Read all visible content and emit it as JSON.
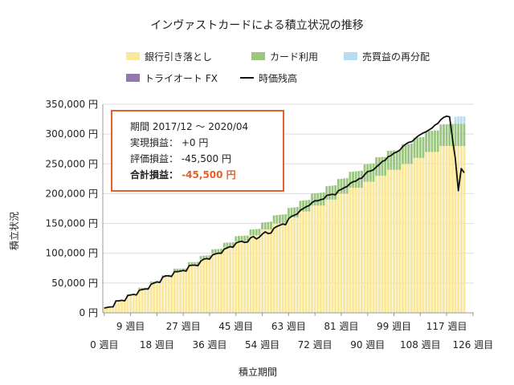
{
  "chart_data": {
    "type": "bar",
    "stacked": true,
    "title": "インヴァストカードによる積立状況の推移",
    "xlabel": "積立期間",
    "ylabel": "積立状況",
    "ylim": [
      0,
      350000
    ],
    "yticks": [
      0,
      50000,
      100000,
      150000,
      200000,
      250000,
      300000,
      350000
    ],
    "ytick_labels": [
      "0 円",
      "50,000 円",
      "100,000 円",
      "150,000 円",
      "200,000 円",
      "250,000 円",
      "300,000 円",
      "350,000 円"
    ],
    "xtick_labels": [
      {
        "week": 0,
        "label": "0 週目"
      },
      {
        "week": 9,
        "label": "9 週目"
      },
      {
        "week": 18,
        "label": "18 週目"
      },
      {
        "week": 27,
        "label": "27 週目"
      },
      {
        "week": 36,
        "label": "36 週目"
      },
      {
        "week": 45,
        "label": "45 週目"
      },
      {
        "week": 54,
        "label": "54 週目"
      },
      {
        "week": 63,
        "label": "63 週目"
      },
      {
        "week": 72,
        "label": "72 週目"
      },
      {
        "week": 81,
        "label": "81 週目"
      },
      {
        "week": 90,
        "label": "90 週目"
      },
      {
        "week": 99,
        "label": "99 週目"
      },
      {
        "week": 108,
        "label": "108 週目"
      },
      {
        "week": 117,
        "label": "117 週目"
      },
      {
        "week": 126,
        "label": "126 週目"
      }
    ],
    "legend_position": "top",
    "grid": true,
    "x": [
      0,
      1,
      2,
      3,
      4,
      5,
      6,
      7,
      8,
      9,
      10,
      11,
      12,
      13,
      14,
      15,
      16,
      17,
      18,
      19,
      20,
      21,
      22,
      23,
      24,
      25,
      26,
      27,
      28,
      29,
      30,
      31,
      32,
      33,
      34,
      35,
      36,
      37,
      38,
      39,
      40,
      41,
      42,
      43,
      44,
      45,
      46,
      47,
      48,
      49,
      50,
      51,
      52,
      53,
      54,
      55,
      56,
      57,
      58,
      59,
      60,
      61,
      62,
      63,
      64,
      65,
      66,
      67,
      68,
      69,
      70,
      71,
      72,
      73,
      74,
      75,
      76,
      77,
      78,
      79,
      80,
      81,
      82,
      83,
      84,
      85,
      86,
      87,
      88,
      89,
      90,
      91,
      92,
      93,
      94,
      95,
      96,
      97,
      98,
      99,
      100,
      101,
      102,
      103,
      104,
      105,
      106,
      107,
      108,
      109,
      110,
      111,
      112,
      113,
      114,
      115,
      116,
      117,
      118,
      119,
      120,
      121,
      122,
      123
    ],
    "series": [
      {
        "name": "銀行引き落とし",
        "color": "#f9e79a",
        "values": [
          10000,
          10000,
          10000,
          10000,
          20000,
          20000,
          20000,
          20000,
          30000,
          30000,
          30000,
          30000,
          40000,
          40000,
          40000,
          40000,
          50000,
          50000,
          50000,
          50000,
          60000,
          60000,
          60000,
          60000,
          70000,
          70000,
          70000,
          70000,
          70000,
          80000,
          80000,
          80000,
          80000,
          90000,
          90000,
          90000,
          90000,
          100000,
          100000,
          100000,
          100000,
          110000,
          110000,
          110000,
          110000,
          120000,
          120000,
          120000,
          120000,
          120000,
          130000,
          130000,
          130000,
          130000,
          140000,
          140000,
          140000,
          140000,
          150000,
          150000,
          150000,
          150000,
          150000,
          160000,
          160000,
          160000,
          160000,
          170000,
          170000,
          170000,
          170000,
          180000,
          180000,
          180000,
          180000,
          180000,
          190000,
          190000,
          190000,
          190000,
          200000,
          200000,
          200000,
          200000,
          210000,
          210000,
          210000,
          210000,
          210000,
          220000,
          220000,
          220000,
          220000,
          230000,
          230000,
          230000,
          230000,
          240000,
          240000,
          240000,
          240000,
          240000,
          250000,
          250000,
          250000,
          250000,
          260000,
          260000,
          260000,
          260000,
          270000,
          270000,
          270000,
          270000,
          270000,
          280000,
          280000,
          280000,
          280000,
          280000,
          280000,
          280000,
          280000,
          280000
        ]
      },
      {
        "name": "カード利用",
        "color": "#9bc67f",
        "values": [
          0,
          0,
          0,
          500,
          500,
          500,
          1000,
          1000,
          1000,
          1500,
          1500,
          1500,
          2000,
          2000,
          2000,
          2500,
          2500,
          2500,
          3000,
          3000,
          3000,
          3500,
          3500,
          3500,
          4000,
          4000,
          4000,
          4500,
          4500,
          5000,
          5000,
          5000,
          5500,
          5500,
          6000,
          6000,
          6500,
          6500,
          7000,
          7000,
          7500,
          7500,
          8000,
          8000,
          8500,
          8500,
          9000,
          9000,
          9500,
          9500,
          10000,
          10000,
          10500,
          11000,
          11500,
          12000,
          12500,
          13000,
          13500,
          14000,
          14500,
          15000,
          15500,
          16000,
          16500,
          17000,
          17500,
          18000,
          18500,
          19000,
          19500,
          20000,
          20500,
          21000,
          21500,
          22000,
          22500,
          23000,
          23500,
          24000,
          24500,
          25000,
          25500,
          26000,
          26500,
          27000,
          27500,
          28000,
          28500,
          29000,
          29500,
          30000,
          30500,
          31000,
          31000,
          31500,
          31500,
          32000,
          32000,
          32500,
          32500,
          33000,
          33000,
          33500,
          33500,
          34000,
          34000,
          34500,
          34500,
          35000,
          35000,
          35500,
          35500,
          36000,
          36000,
          36000,
          36500,
          36500,
          37000,
          37000,
          37000,
          37500,
          37500,
          37500
        ]
      },
      {
        "name": "売買益の再分配",
        "color": "#b7dcf2",
        "values": [
          0,
          0,
          0,
          0,
          0,
          0,
          0,
          0,
          0,
          0,
          0,
          0,
          0,
          0,
          0,
          0,
          0,
          0,
          0,
          0,
          0,
          0,
          0,
          0,
          0,
          0,
          0,
          0,
          0,
          0,
          0,
          0,
          0,
          0,
          0,
          0,
          0,
          0,
          0,
          0,
          0,
          0,
          0,
          0,
          0,
          0,
          0,
          0,
          0,
          0,
          0,
          0,
          0,
          0,
          0,
          0,
          0,
          0,
          0,
          0,
          0,
          0,
          0,
          0,
          0,
          0,
          0,
          0,
          0,
          0,
          0,
          0,
          0,
          0,
          0,
          0,
          0,
          0,
          0,
          0,
          0,
          0,
          0,
          0,
          0,
          0,
          0,
          0,
          0,
          0,
          0,
          0,
          0,
          0,
          0,
          0,
          0,
          0,
          0,
          0,
          0,
          0,
          0,
          0,
          0,
          0,
          0,
          0,
          0,
          0,
          0,
          0,
          0,
          0,
          0,
          0,
          0,
          0,
          0,
          0,
          12000,
          12000,
          12000,
          12000
        ]
      },
      {
        "name": "トライオート FX",
        "color": "#9477ad",
        "values": [
          0,
          0,
          0,
          0,
          0,
          0,
          0,
          0,
          0,
          0,
          0,
          0,
          0,
          0,
          0,
          0,
          0,
          0,
          0,
          0,
          0,
          0,
          0,
          0,
          0,
          0,
          0,
          0,
          0,
          0,
          0,
          0,
          0,
          0,
          0,
          0,
          0,
          0,
          0,
          0,
          0,
          0,
          0,
          0,
          0,
          0,
          0,
          0,
          0,
          0,
          0,
          0,
          0,
          0,
          0,
          0,
          0,
          0,
          0,
          0,
          0,
          0,
          0,
          0,
          0,
          0,
          0,
          0,
          0,
          0,
          0,
          0,
          0,
          0,
          0,
          0,
          0,
          0,
          0,
          0,
          0,
          0,
          0,
          0,
          0,
          0,
          0,
          0,
          0,
          0,
          0,
          0,
          0,
          0,
          0,
          0,
          0,
          0,
          0,
          0,
          0,
          0,
          0,
          0,
          0,
          0,
          0,
          0,
          0,
          0,
          0,
          0,
          0,
          0,
          0,
          0,
          0,
          0,
          0,
          0,
          0,
          0,
          0,
          0
        ]
      }
    ],
    "line": {
      "name": "時価残高",
      "color": "#111111",
      "values": [
        8000,
        9000,
        10000,
        10000,
        20000,
        20000,
        21000,
        20000,
        29000,
        30000,
        31000,
        30000,
        38000,
        39000,
        40000,
        40000,
        48000,
        50000,
        52000,
        51000,
        60000,
        62000,
        62000,
        61000,
        69000,
        69000,
        70000,
        71000,
        70000,
        79000,
        80000,
        80000,
        79000,
        87000,
        90000,
        91000,
        90000,
        97000,
        99000,
        100000,
        100000,
        107000,
        109000,
        111000,
        110000,
        117000,
        119000,
        120000,
        118000,
        119000,
        126000,
        128000,
        124000,
        127000,
        132000,
        136000,
        133000,
        134000,
        142000,
        145000,
        147000,
        149000,
        148000,
        158000,
        162000,
        164000,
        166000,
        172000,
        175000,
        178000,
        180000,
        185000,
        188000,
        188000,
        190000,
        191000,
        197000,
        198000,
        199000,
        198000,
        205000,
        207000,
        210000,
        212000,
        217000,
        220000,
        221000,
        225000,
        226000,
        232000,
        237000,
        238000,
        240000,
        245000,
        249000,
        254000,
        256000,
        262000,
        264000,
        268000,
        270000,
        273000,
        279000,
        283000,
        286000,
        287000,
        291000,
        296000,
        299000,
        302000,
        304000,
        307000,
        310000,
        315000,
        318000,
        324000,
        328000,
        330000,
        329000,
        292000,
        258000,
        205000,
        242000,
        235000
      ]
    }
  },
  "legend": {
    "items": [
      {
        "label": "銀行引き落とし",
        "color": "#f9e79a",
        "kind": "box"
      },
      {
        "label": "カード利用",
        "color": "#9bc67f",
        "kind": "box"
      },
      {
        "label": "売買益の再分配",
        "color": "#b7dcf2",
        "kind": "box"
      },
      {
        "label": "トライオート FX",
        "color": "#9477ad",
        "kind": "box"
      },
      {
        "label": "時価残高",
        "color": "#111111",
        "kind": "line"
      }
    ]
  },
  "summary": {
    "period": "期間 2017/12 ～ 2020/04",
    "realized": "実現損益： +0 円",
    "unrealized": "評価損益： -45,500 円",
    "total_label": "合計損益：",
    "total_value": "-45,500 円",
    "border_color": "#e2612c"
  }
}
